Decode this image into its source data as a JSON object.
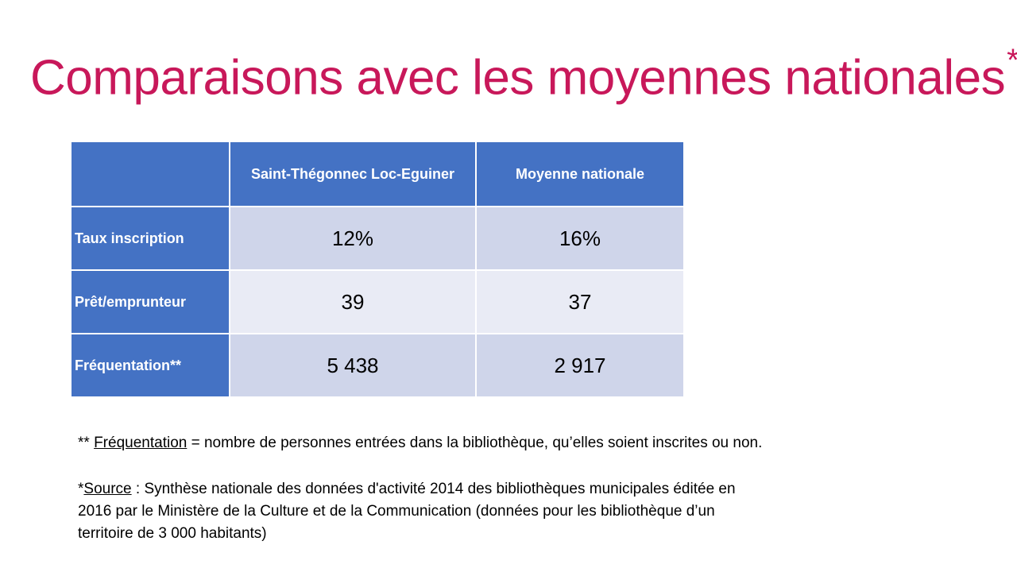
{
  "slide": {
    "title": "Comparaisons avec les moyennes nationales",
    "title_mark": "*"
  },
  "table": {
    "headers": [
      "",
      "Saint-Thégonnec Loc-Eguiner",
      "Moyenne nationale"
    ],
    "rows": [
      {
        "label": "Taux inscription",
        "local": "12%",
        "national": "16%"
      },
      {
        "label": "Prêt/emprunteur",
        "local": "39",
        "national": "37"
      },
      {
        "label": "Fréquentation**",
        "local": "5 438",
        "national": "2 917"
      }
    ]
  },
  "notes": {
    "freq_prefix": "** ",
    "freq_term": "Fréquentation",
    "freq_text": " = nombre de personnes entrées dans la bibliothèque, qu’elles soient inscrites ou non.",
    "source_prefix": "*",
    "source_term": "Source",
    "source_line1": " : Synthèse nationale des données d'activité 2014 des bibliothèques municipales éditée en",
    "source_line2": "2016 par le Ministère de la Culture et de la Communication (données pour les bibliothèque d’un",
    "source_line3": "territoire de 3 000 habitants)"
  },
  "colors": {
    "title": "#c8185a",
    "header_blue": "#4472c4",
    "row_dark": "#cfd5ea",
    "row_light": "#e9ebf5"
  }
}
